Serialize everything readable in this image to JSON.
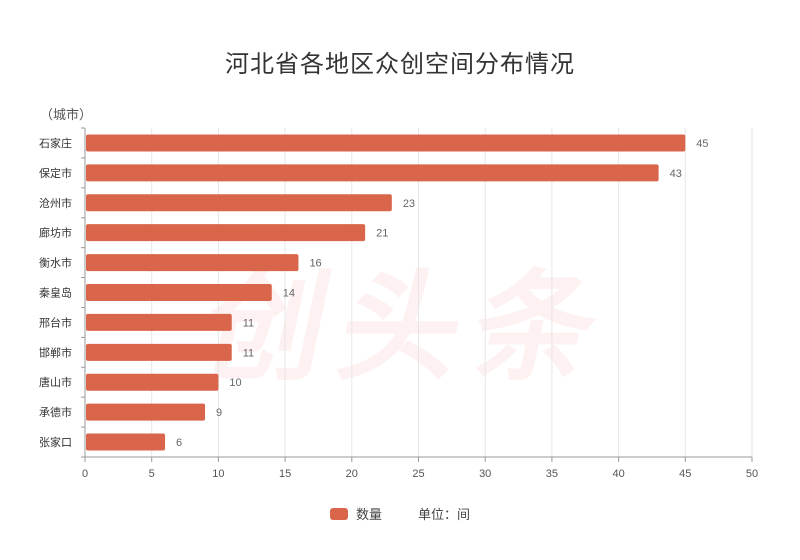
{
  "title": "河北省各地区众创空间分布情况",
  "y_unit_label": "（城市）",
  "legend": {
    "series_label": "数量",
    "unit_label": "单位：间"
  },
  "watermark": "创头条",
  "colors": {
    "bar": "#d9654b",
    "grid": "#e6e6e6",
    "axis": "#999999"
  },
  "chart_data": {
    "type": "bar",
    "orientation": "horizontal",
    "title": "河北省各地区众创空间分布情况",
    "ylabel": "（城市）",
    "categories": [
      "石家庄",
      "保定市",
      "沧州市",
      "廊坊市",
      "衡水市",
      "秦皇岛",
      "邢台市",
      "邯郸市",
      "唐山市",
      "承德市",
      "张家口"
    ],
    "series": [
      {
        "name": "数量",
        "values": [
          45,
          43,
          23,
          21,
          16,
          14,
          11,
          11,
          10,
          9,
          6
        ]
      }
    ],
    "xlim": [
      0,
      50
    ],
    "xticks": [
      0,
      5,
      10,
      15,
      20,
      25,
      30,
      35,
      40,
      45,
      50
    ],
    "grid": true,
    "legend_position": "bottom"
  }
}
